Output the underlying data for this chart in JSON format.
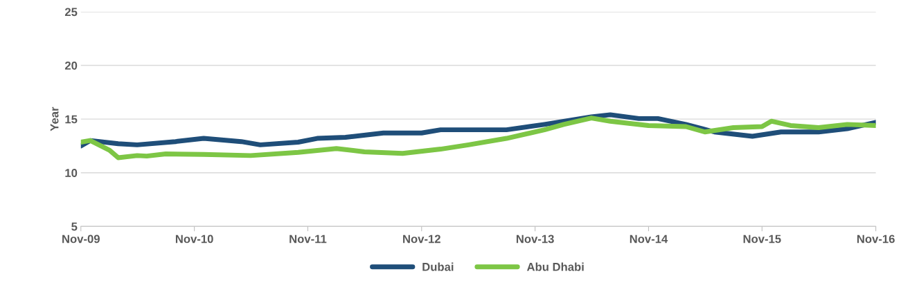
{
  "chart_data": {
    "type": "line",
    "ylabel": "Year",
    "ylim": [
      5,
      25
    ],
    "yticks": [
      5,
      10,
      15,
      20,
      25
    ],
    "xlim": [
      "2009-11",
      "2016-11"
    ],
    "xticks": [
      {
        "value": "2009-11",
        "label": "Nov-09"
      },
      {
        "value": "2010-11",
        "label": "Nov-10"
      },
      {
        "value": "2011-11",
        "label": "Nov-11"
      },
      {
        "value": "2012-11",
        "label": "Nov-12"
      },
      {
        "value": "2013-11",
        "label": "Nov-13"
      },
      {
        "value": "2014-11",
        "label": "Nov-14"
      },
      {
        "value": "2015-11",
        "label": "Nov-15"
      },
      {
        "value": "2016-11",
        "label": "Nov-16"
      }
    ],
    "grid": "y",
    "legend": "bottom",
    "marker": "none",
    "line_style": "solid",
    "series": [
      {
        "name": "Dubai",
        "color": "#1f4e79",
        "x": [
          "2009-11",
          "2009-12",
          "2010-03",
          "2010-05",
          "2010-09",
          "2010-12",
          "2011-04",
          "2011-06",
          "2011-10",
          "2011-12",
          "2012-03",
          "2012-07",
          "2012-11",
          "2013-01",
          "2013-08",
          "2013-12",
          "2014-05",
          "2014-07",
          "2014-10",
          "2014-12",
          "2015-03",
          "2015-06",
          "2015-10",
          "2016-01",
          "2016-05",
          "2016-08",
          "2016-11"
        ],
        "values": [
          12.5,
          13.0,
          12.7,
          12.6,
          12.9,
          13.2,
          12.9,
          12.6,
          12.85,
          13.2,
          13.3,
          13.7,
          13.7,
          14.0,
          14.0,
          14.5,
          15.2,
          15.4,
          15.05,
          15.05,
          14.5,
          13.8,
          13.4,
          13.8,
          13.8,
          14.1,
          14.7
        ]
      },
      {
        "name": "Abu Dhabi",
        "color": "#7dc645",
        "x": [
          "2009-11",
          "2009-12",
          "2010-02",
          "2010-03",
          "2010-05",
          "2010-06",
          "2010-08",
          "2010-12",
          "2011-05",
          "2011-10",
          "2012-02",
          "2012-05",
          "2012-09",
          "2013-01",
          "2013-04",
          "2013-08",
          "2013-12",
          "2014-02",
          "2014-05",
          "2014-07",
          "2014-11",
          "2015-03",
          "2015-05",
          "2015-08",
          "2015-11",
          "2015-12",
          "2016-02",
          "2016-05",
          "2016-08",
          "2016-11"
        ],
        "values": [
          12.85,
          13.0,
          12.1,
          11.4,
          11.6,
          11.55,
          11.75,
          11.7,
          11.6,
          11.9,
          12.25,
          11.95,
          11.8,
          12.2,
          12.6,
          13.2,
          14.0,
          14.5,
          15.1,
          14.8,
          14.4,
          14.3,
          13.8,
          14.2,
          14.3,
          14.8,
          14.4,
          14.2,
          14.5,
          14.4
        ]
      }
    ]
  }
}
